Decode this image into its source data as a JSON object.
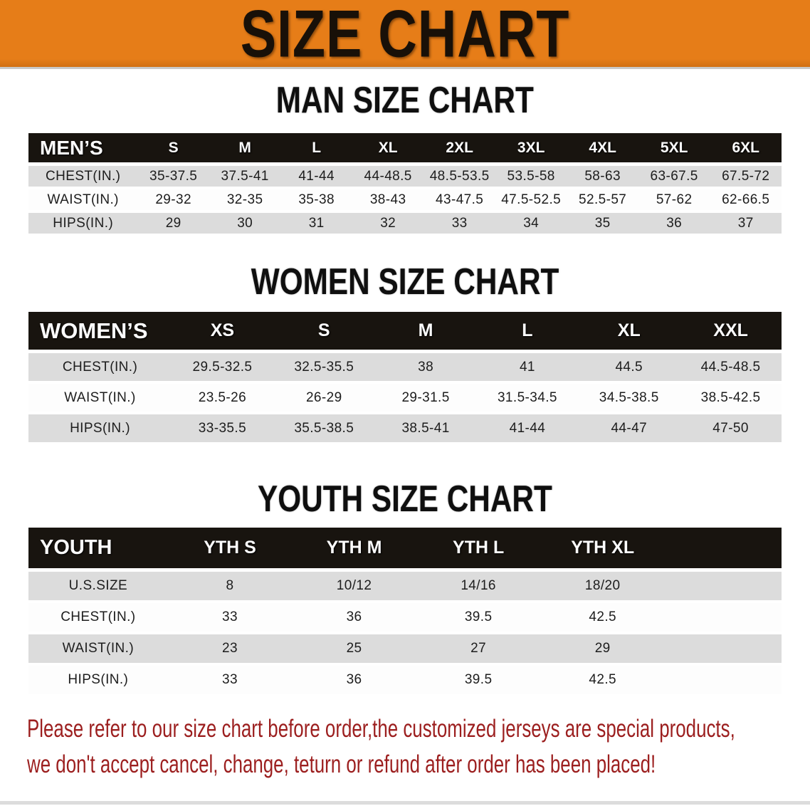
{
  "banner": {
    "title": "SIZE CHART"
  },
  "sections": {
    "men": {
      "heading": "MAN SIZE CHART"
    },
    "women": {
      "heading": "WOMEN SIZE CHART"
    },
    "youth": {
      "heading": "YOUTH SIZE CHART"
    }
  },
  "tables": {
    "men": {
      "corner_label": "MEN’S",
      "columns": [
        "S",
        "M",
        "L",
        "XL",
        "2XL",
        "3XL",
        "4XL",
        "5XL",
        "6XL"
      ],
      "rows": [
        {
          "label": "CHEST(IN.)",
          "values": [
            "35-37.5",
            "37.5-41",
            "41-44",
            "44-48.5",
            "48.5-53.5",
            "53.5-58",
            "58-63",
            "63-67.5",
            "67.5-72"
          ]
        },
        {
          "label": "WAIST(IN.)",
          "values": [
            "29-32",
            "32-35",
            "35-38",
            "38-43",
            "43-47.5",
            "47.5-52.5",
            "52.5-57",
            "57-62",
            "62-66.5"
          ]
        },
        {
          "label": "HIPS(IN.)",
          "values": [
            "29",
            "30",
            "31",
            "32",
            "33",
            "34",
            "35",
            "36",
            "37"
          ]
        }
      ],
      "filler_column": false
    },
    "women": {
      "corner_label": "WOMEN’S",
      "columns": [
        "XS",
        "S",
        "M",
        "L",
        "XL",
        "XXL"
      ],
      "rows": [
        {
          "label": "CHEST(IN.)",
          "values": [
            "29.5-32.5",
            "32.5-35.5",
            "38",
            "41",
            "44.5",
            "44.5-48.5"
          ]
        },
        {
          "label": "WAIST(IN.)",
          "values": [
            "23.5-26",
            "26-29",
            "29-31.5",
            "31.5-34.5",
            "34.5-38.5",
            "38.5-42.5"
          ]
        },
        {
          "label": "HIPS(IN.)",
          "values": [
            "33-35.5",
            "35.5-38.5",
            "38.5-41",
            "41-44",
            "44-47",
            "47-50"
          ]
        }
      ],
      "filler_column": false
    },
    "youth": {
      "corner_label": "YOUTH",
      "columns": [
        "YTH S",
        "YTH M",
        "YTH L",
        "YTH XL"
      ],
      "rows": [
        {
          "label": "U.S.SIZE",
          "values": [
            "8",
            "10/12",
            "14/16",
            "18/20"
          ]
        },
        {
          "label": "CHEST(IN.)",
          "values": [
            "33",
            "36",
            "39.5",
            "42.5"
          ]
        },
        {
          "label": "WAIST(IN.)",
          "values": [
            "23",
            "25",
            "27",
            "29"
          ]
        },
        {
          "label": "HIPS(IN.)",
          "values": [
            "33",
            "36",
            "39.5",
            "42.5"
          ]
        }
      ],
      "filler_column": true
    }
  },
  "disclaimer": {
    "line1": "Please refer to our size chart before order,the customized jerseys are special products,",
    "line2": "we don't accept cancel, change, teturn or refund after order has been placed!"
  },
  "colors": {
    "banner-bg": "#e67d18",
    "header-bg": "#18140f",
    "stripe": "#dcdcdc",
    "disclaimer-red": "#9c1f1f"
  }
}
